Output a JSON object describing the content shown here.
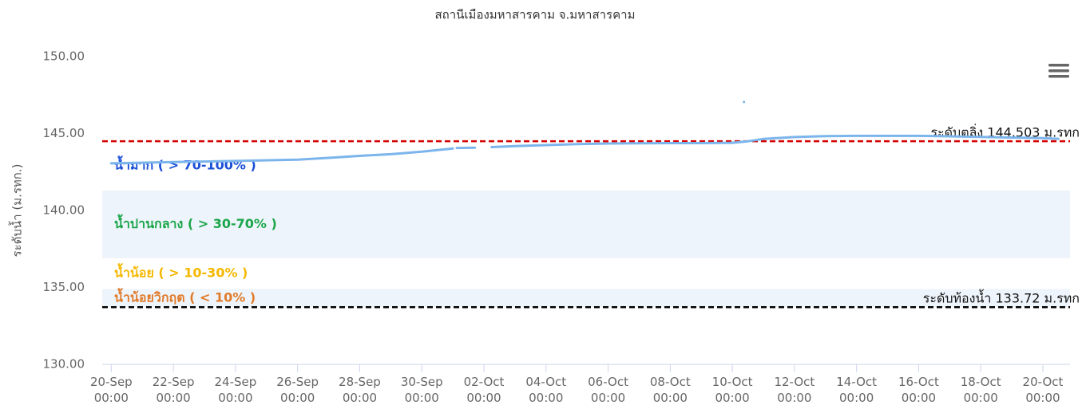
{
  "chart_data": {
    "type": "line",
    "title": "สถานีเมืองมหาสารคาม จ.มหาสารคาม",
    "y_label": "ระดับน้ำ (ม.รทก.)",
    "ylim": [
      130,
      150
    ],
    "yticks": [
      {
        "value": 130,
        "label": "130.00"
      },
      {
        "value": 135,
        "label": "135.00"
      },
      {
        "value": 140,
        "label": "140.00"
      },
      {
        "value": 145,
        "label": "145.00"
      },
      {
        "value": 150,
        "label": "150.00"
      }
    ],
    "xlim": [
      "19-Sep 17:00",
      "20-Oct 21:00"
    ],
    "xticks": [
      "20-Sep 00:00",
      "22-Sep 00:00",
      "24-Sep 00:00",
      "26-Sep 00:00",
      "28-Sep 00:00",
      "30-Sep 00:00",
      "02-Oct 00:00",
      "04-Oct 00:00",
      "06-Oct 00:00",
      "08-Oct 00:00",
      "10-Oct 00:00",
      "12-Oct 00:00",
      "14-Oct 00:00",
      "16-Oct 00:00",
      "18-Oct 00:00",
      "20-Oct 00:00"
    ],
    "grid": false,
    "series": [
      {
        "color": "#7cb5ec",
        "x": [
          "20-Sep 00:00",
          "22-Sep 00:00",
          "24-Sep 00:00",
          "26-Sep 00:00",
          "27-Sep 00:00",
          "28-Sep 00:00",
          "29-Sep 00:00",
          "30-Sep 00:00",
          "01-Oct 00:00",
          "01-Oct 02:00",
          "01-Oct 03:00",
          "01-Oct 17:00",
          "01-Oct 20:00",
          "02-Oct 06:00",
          "03-Oct 00:00",
          "04-Oct 00:00",
          "05-Oct 00:00",
          "06-Oct 00:00",
          "08-Oct 00:00",
          "09-Oct 00:00",
          "10-Oct 00:00",
          "10-Oct 12:00",
          "11-Oct 00:00",
          "12-Oct 00:00",
          "13-Oct 00:00",
          "14-Oct 00:00",
          "16-Oct 00:00",
          "17-Oct 00:00",
          "18-Oct 00:00",
          "19-Oct 00:00",
          "20-Oct 00:00",
          "20-Oct 12:00"
        ],
        "values": [
          143.06,
          143.15,
          143.22,
          143.3,
          143.42,
          143.55,
          143.66,
          143.82,
          144.03,
          null,
          144.06,
          144.08,
          null,
          144.12,
          144.18,
          144.25,
          144.31,
          144.35,
          144.38,
          144.38,
          144.4,
          144.5,
          144.65,
          144.77,
          144.83,
          144.85,
          144.85,
          144.82,
          144.78,
          144.74,
          144.7,
          144.66
        ]
      },
      {
        "color": "#7cb5ec",
        "x": [
          "10-Oct 09:00"
        ],
        "values": [
          147.05
        ]
      }
    ],
    "bands": [
      {
        "from": 141.3,
        "to": 144.503,
        "label": "น้ำมาก ( > 70-100% )",
        "color": "#1a4fd6",
        "fill": "none"
      },
      {
        "from": 136.9,
        "to": 141.3,
        "label": "น้ำปานกลาง ( > 30-70% )",
        "color": "#1aa64a",
        "fill": "#eef4fb"
      },
      {
        "from": 134.9,
        "to": 136.9,
        "label": "น้ำน้อย ( > 10-30% )",
        "color": "#f5b800",
        "fill": "none"
      },
      {
        "from": 133.72,
        "to": 134.9,
        "label": "น้ำน้อยวิกฤต ( < 10% )",
        "color": "#e07b2a",
        "fill": "#eef4fb"
      }
    ],
    "plot_lines": [
      {
        "value": 144.503,
        "label": "ระดับตลิ่ง 144.503 ม.รทก",
        "color": "#d40000"
      },
      {
        "value": 133.72,
        "label": "ระดับท้องน้ำ 133.72 ม.รทก",
        "color": "#000000"
      }
    ]
  }
}
